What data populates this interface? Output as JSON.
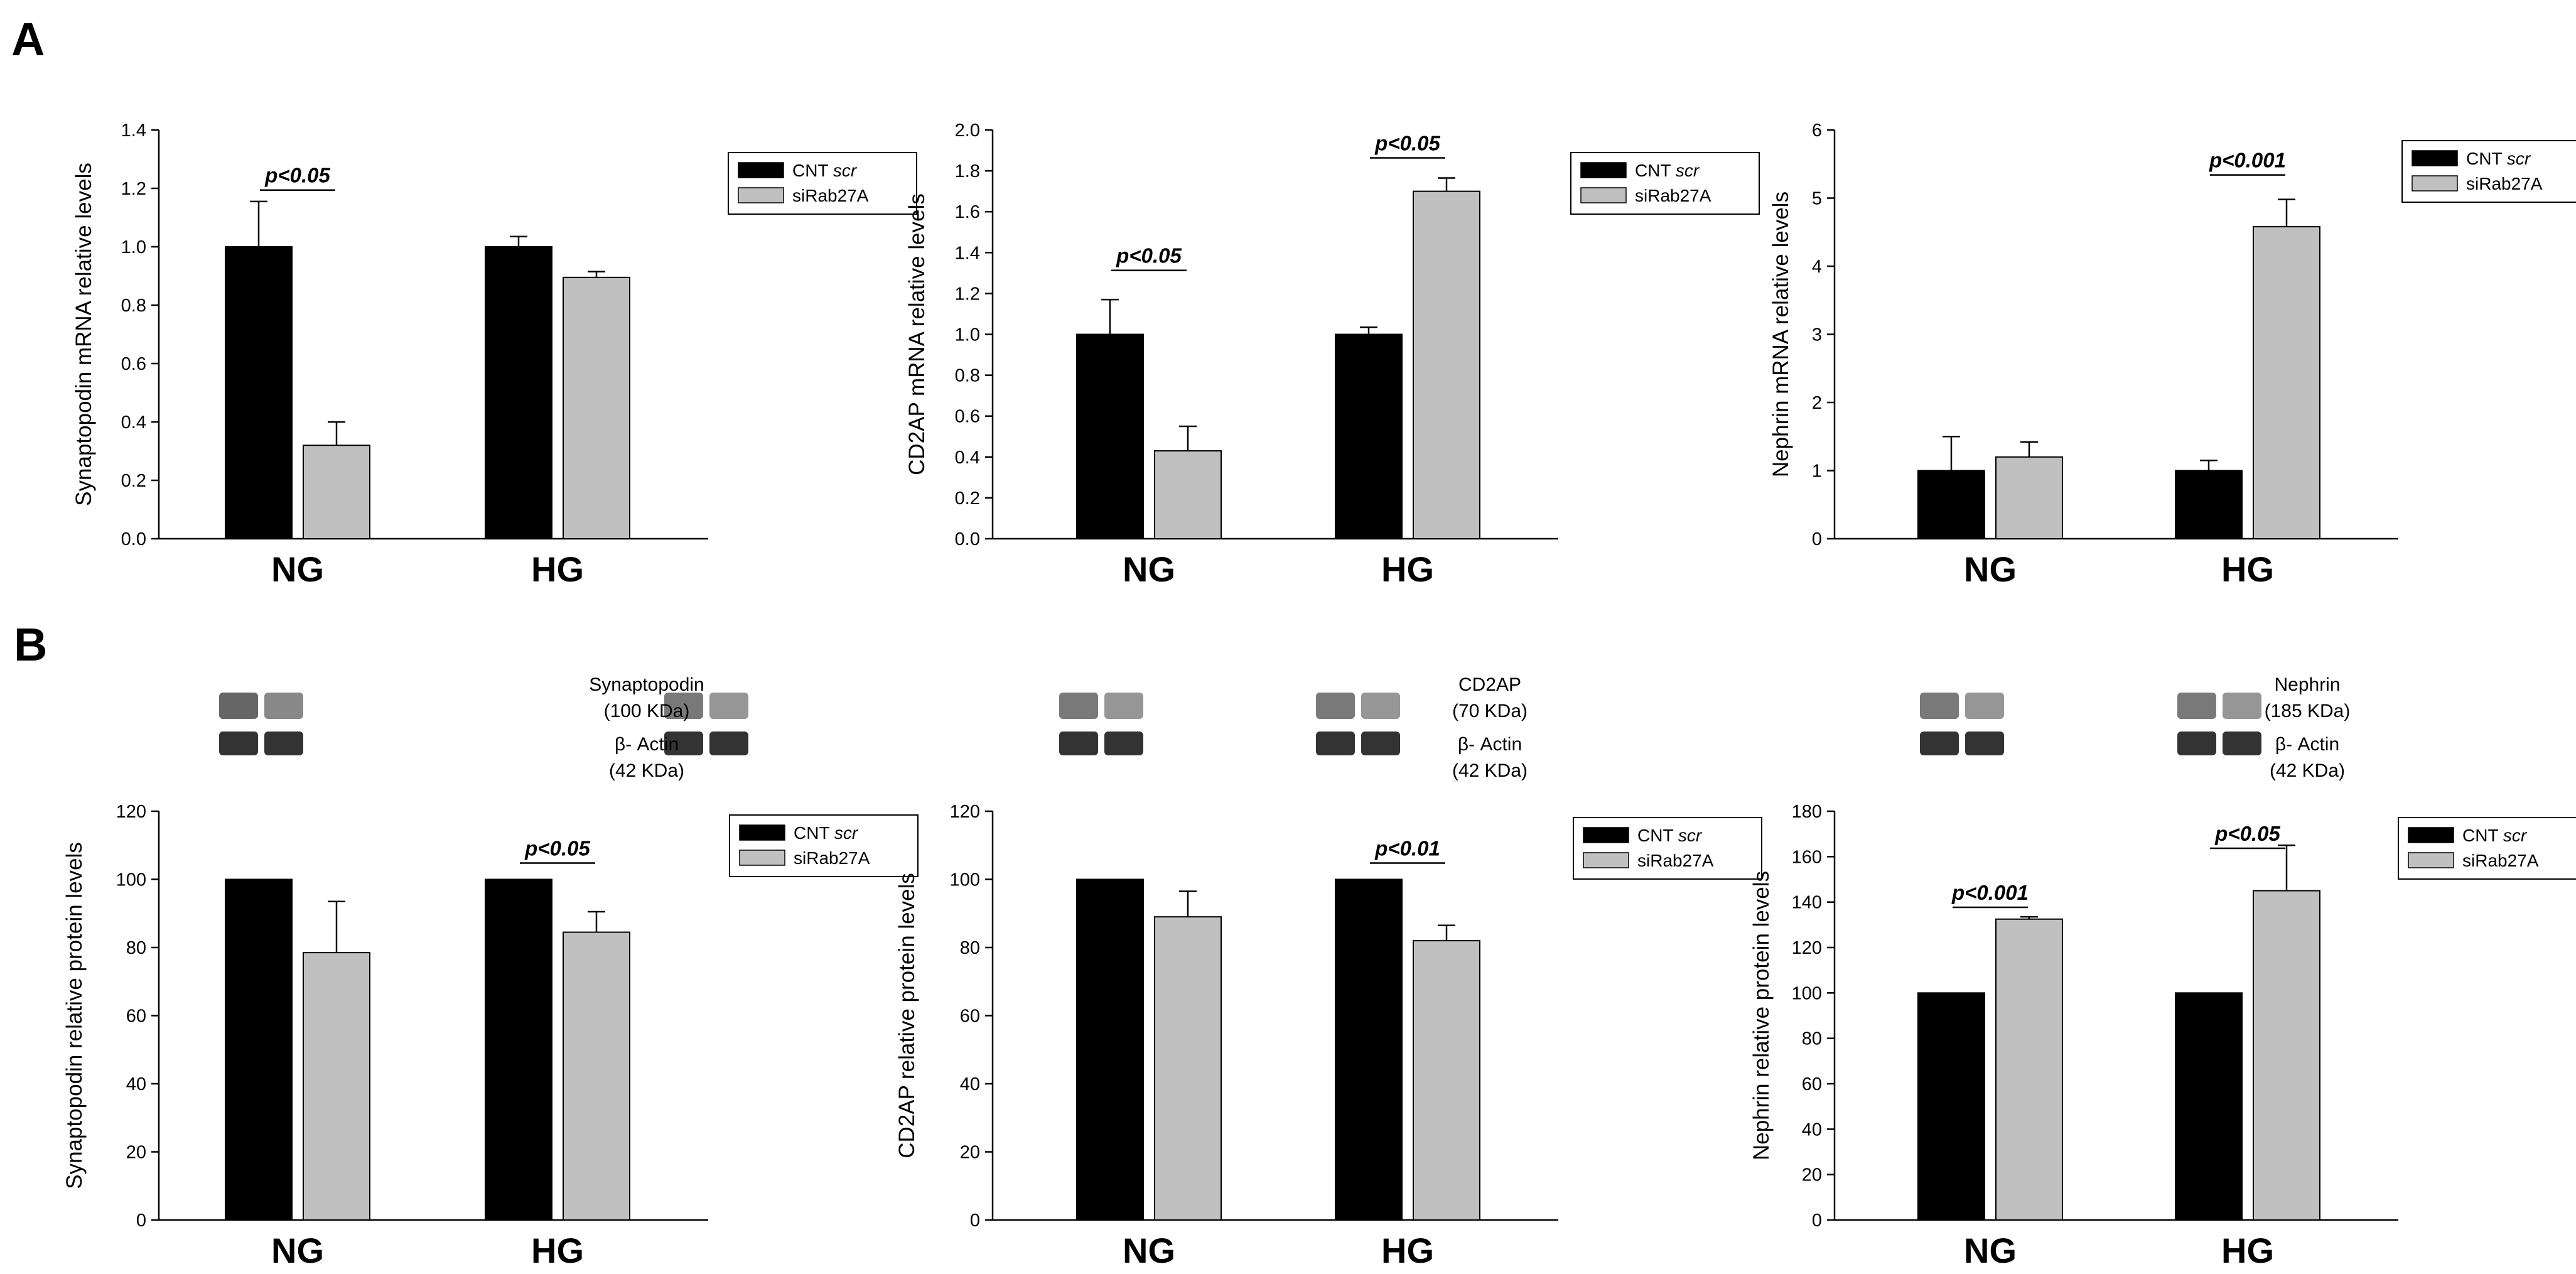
{
  "panels": {
    "A": "A",
    "B": "B"
  },
  "colors": {
    "series1": "#000000",
    "series2": "#c0c0c0",
    "axis": "#000000"
  },
  "chart_data": [
    {
      "type": "bar",
      "ylabel": "Synaptopodin mRNA relative levels",
      "categories": [
        "NG",
        "HG"
      ],
      "ylim": [
        0,
        1.4
      ],
      "yticks": [
        "0.0",
        "0.2",
        "0.4",
        "0.6",
        "0.8",
        "1.0",
        "1.2",
        "1.4"
      ],
      "series": [
        {
          "name": "CNT",
          "name_suffix": "scr",
          "values": [
            1.0,
            1.0
          ],
          "errors": [
            0.155,
            0.035
          ]
        },
        {
          "name": "siRab27A",
          "values": [
            0.32,
            0.895
          ],
          "errors": [
            0.08,
            0.02
          ]
        }
      ],
      "legend": "top-right",
      "annotations": [
        {
          "text": "p<0.05",
          "category": 0,
          "y": 1.22
        }
      ]
    },
    {
      "type": "bar",
      "ylabel": "CD2AP mRNA relative levels",
      "categories": [
        "NG",
        "HG"
      ],
      "ylim": [
        0,
        2.0
      ],
      "yticks": [
        "0.0",
        "0.2",
        "0.4",
        "0.6",
        "0.8",
        "1.0",
        "1.2",
        "1.4",
        "1.6",
        "1.8",
        "2.0"
      ],
      "series": [
        {
          "name": "CNT",
          "name_suffix": "scr",
          "values": [
            1.0,
            1.0
          ],
          "errors": [
            0.17,
            0.035
          ]
        },
        {
          "name": "siRab27A",
          "values": [
            0.43,
            1.7
          ],
          "errors": [
            0.12,
            0.065
          ]
        }
      ],
      "legend": "top-right",
      "annotations": [
        {
          "text": "p<0.05",
          "category": 0,
          "y": 1.35
        },
        {
          "text": "p<0.05",
          "category": 1,
          "y": 1.9
        }
      ]
    },
    {
      "type": "bar",
      "ylabel": "Nephrin mRNA relative levels",
      "categories": [
        "NG",
        "HG"
      ],
      "ylim": [
        0,
        6
      ],
      "yticks": [
        "0",
        "1",
        "2",
        "3",
        "4",
        "5",
        "6"
      ],
      "series": [
        {
          "name": "CNT",
          "name_suffix": "scr",
          "values": [
            1.0,
            1.0
          ],
          "errors": [
            0.5,
            0.15
          ]
        },
        {
          "name": "siRab27A",
          "values": [
            1.2,
            4.58
          ],
          "errors": [
            0.22,
            0.4
          ]
        }
      ],
      "legend": "top-right",
      "annotations": [
        {
          "text": "p<0.001",
          "category": 1,
          "y": 5.45
        }
      ]
    },
    {
      "type": "bar",
      "ylabel": "Synaptopodin relative protein levels",
      "categories": [
        "NG",
        "HG"
      ],
      "ylim": [
        0,
        120
      ],
      "yticks": [
        "0",
        "20",
        "40",
        "60",
        "80",
        "100",
        "120"
      ],
      "series": [
        {
          "name": "CNT",
          "name_suffix": "scr",
          "values": [
            100,
            100
          ],
          "errors": [
            0,
            0
          ]
        },
        {
          "name": "siRab27A",
          "values": [
            78.5,
            84.5
          ],
          "errors": [
            15,
            6
          ]
        }
      ],
      "legend": "top-right",
      "annotations": [
        {
          "text": "p<0.05",
          "category": 1,
          "y": 107
        }
      ],
      "blot": {
        "protein": "Synaptopodin",
        "protein_kda": "(100 KDa)",
        "loading": "β- Actin",
        "loading_kda": "(42 KDa)"
      }
    },
    {
      "type": "bar",
      "ylabel": "CD2AP relative protein levels",
      "categories": [
        "NG",
        "HG"
      ],
      "ylim": [
        0,
        120
      ],
      "yticks": [
        "0",
        "20",
        "40",
        "60",
        "80",
        "100",
        "120"
      ],
      "series": [
        {
          "name": "CNT",
          "name_suffix": "scr",
          "values": [
            100,
            100
          ],
          "errors": [
            0,
            0
          ]
        },
        {
          "name": "siRab27A",
          "values": [
            89,
            82
          ],
          "errors": [
            7.5,
            4.5
          ]
        }
      ],
      "legend": "top-right",
      "annotations": [
        {
          "text": "p<0.01",
          "category": 1,
          "y": 107
        }
      ],
      "blot": {
        "protein": "CD2AP",
        "protein_kda": "(70 KDa)",
        "loading": "β- Actin",
        "loading_kda": "(42 KDa)"
      }
    },
    {
      "type": "bar",
      "ylabel": "Nephrin relative protein levels",
      "categories": [
        "NG",
        "HG"
      ],
      "ylim": [
        0,
        180
      ],
      "yticks": [
        "0",
        "20",
        "40",
        "60",
        "80",
        "100",
        "120",
        "140",
        "160",
        "180"
      ],
      "series": [
        {
          "name": "CNT",
          "name_suffix": "scr",
          "values": [
            100,
            100
          ],
          "errors": [
            0,
            0
          ]
        },
        {
          "name": "siRab27A",
          "values": [
            132.5,
            145
          ],
          "errors": [
            1,
            20
          ]
        }
      ],
      "legend": "top-right",
      "annotations": [
        {
          "text": "p<0.001",
          "category": 0,
          "y": 141
        },
        {
          "text": "p<0.05",
          "category": 1,
          "y": 167
        }
      ],
      "blot": {
        "protein": "Nephrin",
        "protein_kda": "(185 KDa)",
        "loading": "β- Actin",
        "loading_kda": "(42 KDa)"
      }
    }
  ]
}
